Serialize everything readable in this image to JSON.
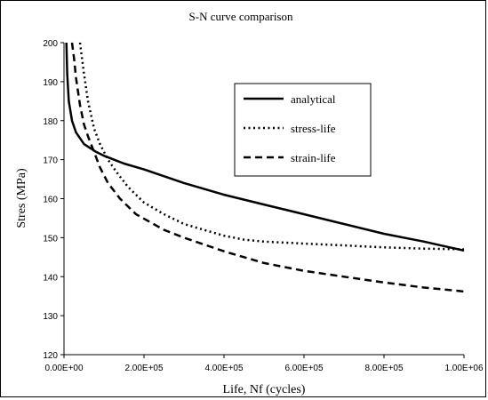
{
  "chart_data": {
    "type": "line",
    "title": "S-N curve comparison",
    "xlabel": "Life,  Nf (cycles)",
    "ylabel": "Stres (MPa)",
    "xlim": [
      0,
      1000000
    ],
    "ylim": [
      120,
      200
    ],
    "xticks": [
      0,
      200000,
      400000,
      600000,
      800000,
      1000000
    ],
    "xtick_labels": [
      "0.00E+00",
      "2.00E+05",
      "4.00E+05",
      "6.00E+05",
      "8.00E+05",
      "1.00E+06"
    ],
    "yticks": [
      120,
      130,
      140,
      150,
      160,
      170,
      180,
      190,
      200
    ],
    "ytick_labels": [
      "120",
      "130",
      "140",
      "150",
      "160",
      "170",
      "180",
      "190",
      "200"
    ],
    "grid": false,
    "legend_position": "upper-right",
    "series": [
      {
        "name": "analytical",
        "style": "solid",
        "color": "#000000",
        "x": [
          6000,
          8000,
          12000,
          20000,
          30000,
          50000,
          80000,
          100000,
          150000,
          200000,
          300000,
          400000,
          500000,
          600000,
          700000,
          800000,
          900000,
          1000000
        ],
        "y": [
          200,
          192,
          185,
          180,
          177,
          174,
          172,
          171,
          169,
          167.5,
          164,
          161,
          158.5,
          156,
          153.5,
          151,
          149,
          146.7
        ]
      },
      {
        "name": "stress-life",
        "style": "dotted",
        "color": "#000000",
        "x": [
          40000,
          50000,
          60000,
          75000,
          90000,
          110000,
          130000,
          160000,
          200000,
          250000,
          300000,
          350000,
          400000,
          450000,
          500000,
          600000,
          700000,
          800000,
          900000,
          1000000
        ],
        "y": [
          200,
          192,
          185,
          178,
          174,
          170,
          167,
          163,
          159,
          156,
          153.5,
          152,
          150.5,
          149.5,
          149,
          148.5,
          148,
          147.5,
          147.2,
          147
        ]
      },
      {
        "name": "strain-life",
        "style": "dashed",
        "color": "#000000",
        "x": [
          20000,
          25000,
          30000,
          40000,
          50000,
          60000,
          75000,
          90000,
          110000,
          140000,
          180000,
          250000,
          300000,
          400000,
          500000,
          600000,
          700000,
          800000,
          900000,
          1000000
        ],
        "y": [
          200,
          196,
          191,
          184,
          179,
          176,
          172,
          168,
          164,
          160,
          156,
          152,
          150,
          146.5,
          143.5,
          141.5,
          140,
          138.5,
          137.2,
          136.2
        ]
      }
    ]
  }
}
